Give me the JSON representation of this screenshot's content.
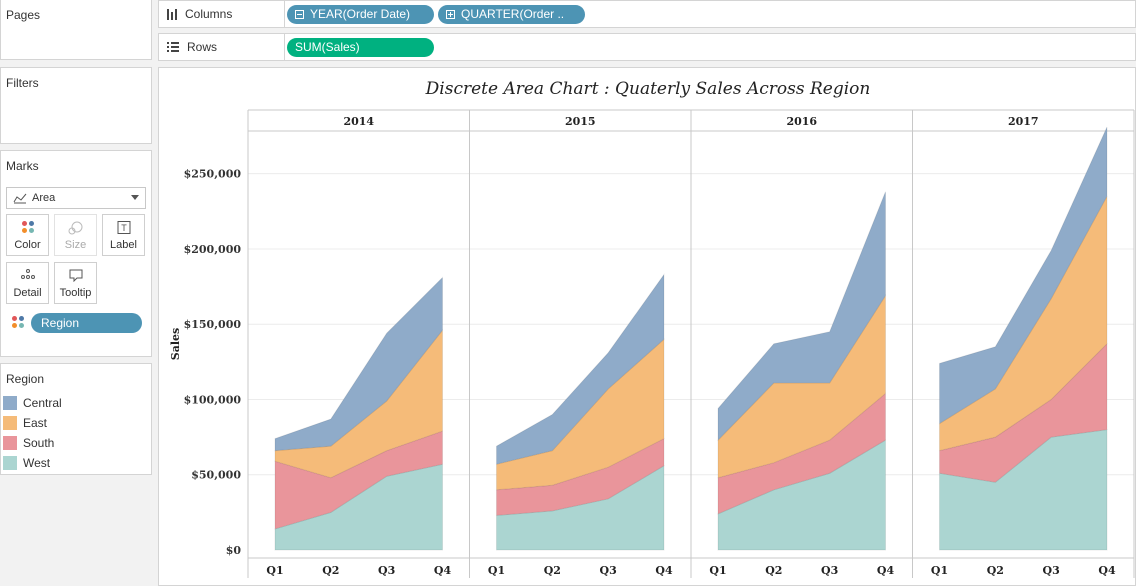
{
  "shelves": {
    "pages_label": "Pages",
    "filters_label": "Filters",
    "columns_label": "Columns",
    "rows_label": "Rows",
    "column_pills": [
      "YEAR(Order Date)",
      "QUARTER(Order .."
    ],
    "row_pill": "SUM(Sales)"
  },
  "marks": {
    "title": "Marks",
    "mark_type": "Area",
    "buttons": {
      "color": "Color",
      "size": "Size",
      "label": "Label",
      "detail": "Detail",
      "tooltip": "Tooltip"
    },
    "color_field": "Region"
  },
  "legend": {
    "title": "Region",
    "items": [
      {
        "name": "Central",
        "color": "#8fabc9"
      },
      {
        "name": "East",
        "color": "#f5bb79"
      },
      {
        "name": "South",
        "color": "#e9959b"
      },
      {
        "name": "West",
        "color": "#abd5d1"
      }
    ]
  },
  "chart_data": {
    "type": "area",
    "title": "Discrete Area Chart : Quaterly Sales Across Region",
    "ylabel": "Sales",
    "ylim": [
      0,
      285000
    ],
    "yticks": [
      0,
      50000,
      100000,
      150000,
      200000,
      250000
    ],
    "ytick_labels": [
      "$0",
      "$50,000",
      "$100,000",
      "$150,000",
      "$200,000",
      "$250,000"
    ],
    "categories": [
      "Q1",
      "Q2",
      "Q3",
      "Q4"
    ],
    "stacked": true,
    "stack_order": [
      "West",
      "South",
      "East",
      "Central"
    ],
    "panels": [
      {
        "year": "2014",
        "series": {
          "West": [
            14000,
            25000,
            49000,
            57000
          ],
          "South": [
            45000,
            23000,
            17000,
            22000
          ],
          "East": [
            7000,
            21000,
            33000,
            67000
          ],
          "Central": [
            8000,
            18000,
            45000,
            35000
          ]
        }
      },
      {
        "year": "2015",
        "series": {
          "West": [
            23000,
            26000,
            34000,
            56000
          ],
          "South": [
            17000,
            17000,
            21000,
            18000
          ],
          "East": [
            17000,
            23000,
            52000,
            66000
          ],
          "Central": [
            12000,
            24000,
            24000,
            43000
          ]
        }
      },
      {
        "year": "2016",
        "series": {
          "West": [
            24000,
            40000,
            51000,
            73000
          ],
          "South": [
            24000,
            18000,
            22000,
            31000
          ],
          "East": [
            25000,
            53000,
            38000,
            65000
          ],
          "Central": [
            21000,
            26000,
            34000,
            69000
          ]
        }
      },
      {
        "year": "2017",
        "series": {
          "West": [
            51000,
            45000,
            75000,
            80000
          ],
          "South": [
            15000,
            30000,
            25000,
            57000
          ],
          "East": [
            18000,
            32000,
            67000,
            98000
          ],
          "Central": [
            40000,
            28000,
            32000,
            46000
          ]
        }
      }
    ],
    "colors": {
      "West": "#abd5d1",
      "South": "#e9959b",
      "East": "#f5bb79",
      "Central": "#8fabc9"
    },
    "grid": true
  }
}
